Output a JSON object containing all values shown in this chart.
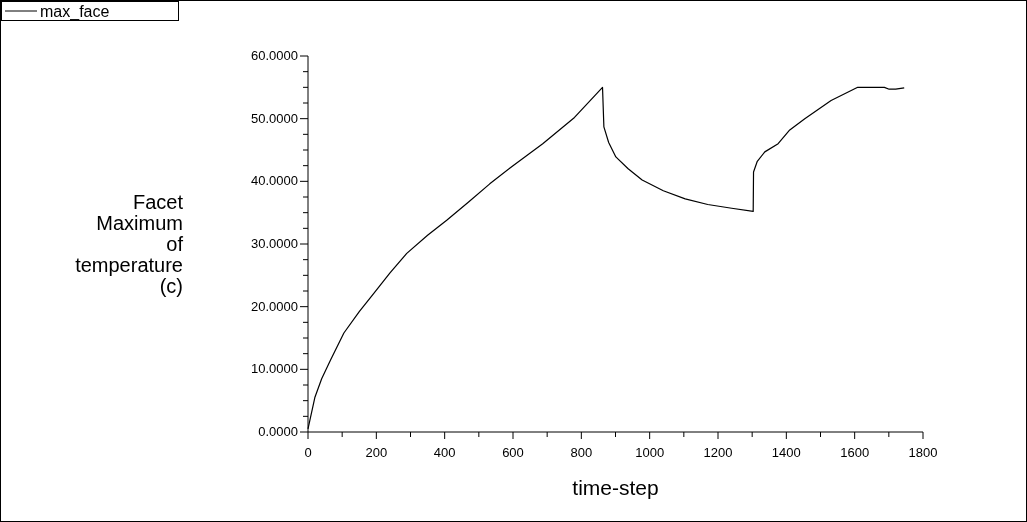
{
  "chart_data": {
    "type": "line",
    "xlabel": "time-step",
    "ylabel": "Facet Maximum of temperature (c)",
    "legend": "top left",
    "marker": "none",
    "line_style": "solid",
    "grid": false,
    "xlim": [
      0,
      1800
    ],
    "ylim": [
      0,
      60
    ],
    "xticks": [
      0,
      {
        "value": 100,
        "label": null
      },
      200,
      {
        "value": 300,
        "label": null
      },
      400,
      {
        "value": 500,
        "label": null
      },
      600,
      {
        "value": 700,
        "label": null
      },
      800,
      {
        "value": 900,
        "label": null
      },
      1000,
      {
        "value": 1100,
        "label": null
      },
      1200,
      {
        "value": 1300,
        "label": null
      },
      1400,
      {
        "value": 1500,
        "label": null
      },
      1600,
      {
        "value": 1700,
        "label": null
      },
      1800
    ],
    "yticks": [
      {
        "value": 0,
        "label": "0.0000"
      },
      {
        "value": 2.5,
        "label": null
      },
      {
        "value": 5,
        "label": null
      },
      {
        "value": 7.5,
        "label": null
      },
      {
        "value": 10,
        "label": "10.0000"
      },
      {
        "value": 12.5,
        "label": null
      },
      {
        "value": 15,
        "label": null
      },
      {
        "value": 17.5,
        "label": null
      },
      {
        "value": 20,
        "label": "20.0000"
      },
      {
        "value": 22.5,
        "label": null
      },
      {
        "value": 25,
        "label": null
      },
      {
        "value": 27.5,
        "label": null
      },
      {
        "value": 30,
        "label": "30.0000"
      },
      {
        "value": 32.5,
        "label": null
      },
      {
        "value": 35,
        "label": null
      },
      {
        "value": 37.5,
        "label": null
      },
      {
        "value": 40,
        "label": "40.0000"
      },
      {
        "value": 42.5,
        "label": null
      },
      {
        "value": 45,
        "label": null
      },
      {
        "value": 47.5,
        "label": null
      },
      {
        "value": 50,
        "label": "50.0000"
      },
      {
        "value": 52.5,
        "label": null
      },
      {
        "value": 55,
        "label": null
      },
      {
        "value": 57.5,
        "label": null
      },
      {
        "value": 60,
        "label": "60.0000"
      }
    ],
    "series": [
      {
        "name": "max_face",
        "color": "#000000",
        "x": [
          0,
          20,
          40,
          66,
          105,
          150,
          192,
          240,
          289,
          350,
          406,
          470,
          532,
          600,
          687,
          780,
          862,
          866,
          880,
          901,
          937,
          978,
          1040,
          1104,
          1170,
          1240,
          1303,
          1304,
          1315,
          1337,
          1376,
          1410,
          1454,
          1531,
          1609,
          1650,
          1687,
          1701,
          1720,
          1745
        ],
        "values": [
          0.5,
          5.5,
          8.5,
          11.5,
          15.8,
          19.2,
          22.1,
          25.4,
          28.5,
          31.4,
          33.8,
          36.7,
          39.6,
          42.5,
          46.0,
          50.2,
          55.0,
          48.7,
          46.2,
          43.9,
          42.0,
          40.2,
          38.5,
          37.2,
          36.3,
          35.7,
          35.2,
          41.5,
          43.2,
          44.7,
          46.0,
          48.2,
          50.0,
          52.9,
          55.0,
          55.0,
          55.0,
          54.7,
          54.7,
          54.9
        ]
      }
    ]
  }
}
